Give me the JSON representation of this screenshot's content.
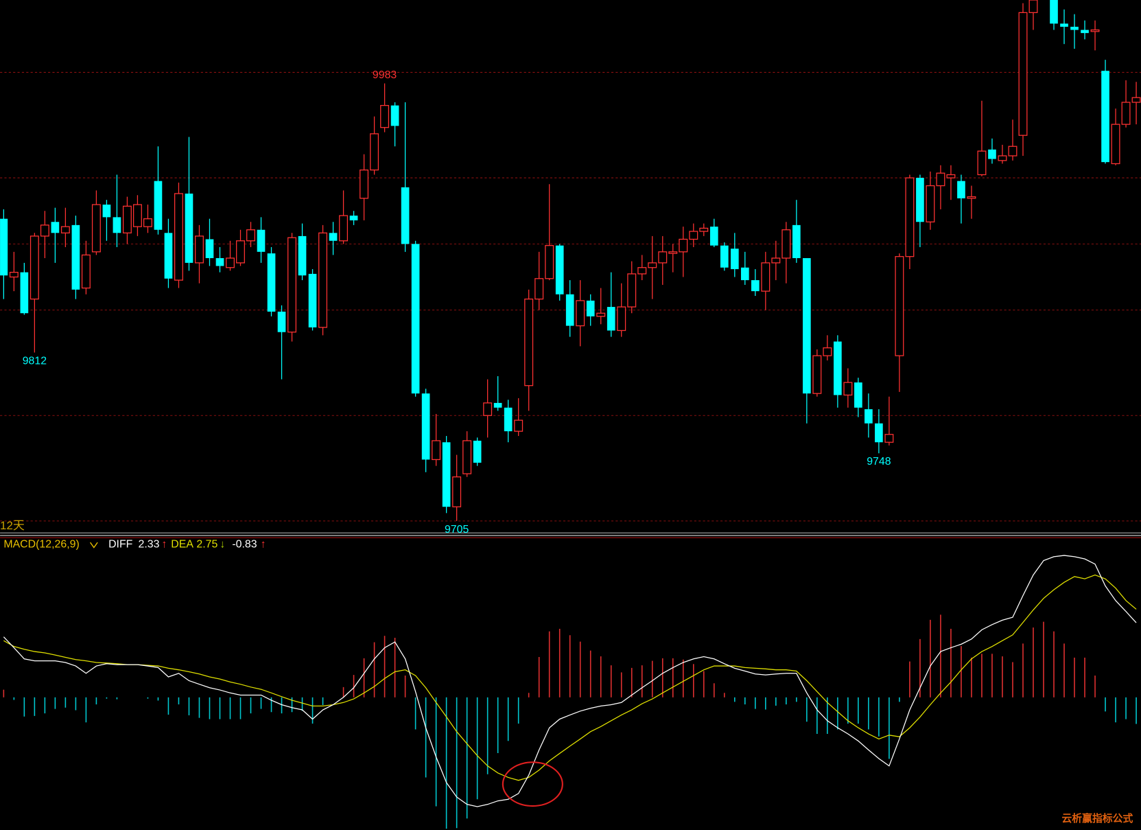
{
  "chart_data": [
    {
      "type": "candlestick",
      "up_color": "#ff3232",
      "down_color": "#00ffff",
      "ylim": [
        9696,
        10036
      ],
      "grid_levels": [
        9990,
        9923,
        9881,
        9839,
        9772,
        9705
      ],
      "grid_color": "#8b1010",
      "period_label": "12天",
      "annotations": [
        9983,
        9812,
        9705,
        9748
      ],
      "open": [
        9897,
        9860,
        9863,
        9846,
        9886,
        9895,
        9888,
        9893,
        9853,
        9876,
        9906,
        9898,
        9888,
        9892,
        9892,
        9921,
        9888,
        9858,
        9913,
        9869,
        9884,
        9872,
        9866,
        9869,
        9883,
        9890,
        9875,
        9838,
        9825,
        9886,
        9862,
        9828,
        9888,
        9883,
        9899,
        9910,
        9928,
        9955,
        9969,
        9917,
        9881,
        9786,
        9744,
        9755,
        9714,
        9735,
        9756,
        9772,
        9780,
        9777,
        9762,
        9791,
        9846,
        9859,
        9880,
        9849,
        9829,
        9845,
        9835,
        9841,
        9826,
        9841,
        9862,
        9866,
        9869,
        9875,
        9876,
        9884,
        9889,
        9892,
        9880,
        9878,
        9866,
        9858,
        9851,
        9869,
        9872,
        9893,
        9872,
        9786,
        9810,
        9819,
        9785,
        9793,
        9776,
        9767,
        9755,
        9810,
        9873,
        9923,
        9895,
        9918,
        9923,
        9921,
        9910,
        9925,
        9941,
        9934,
        9937,
        9950,
        10028,
        10038,
        10045,
        10021,
        10019,
        10017,
        10016,
        9991,
        9932,
        9957,
        9971
      ],
      "high": [
        9903,
        9876,
        9869,
        9888,
        9902,
        9904,
        9904,
        9899,
        9883,
        9915,
        9909,
        9925,
        9911,
        9912,
        9906,
        9943,
        9897,
        9920,
        9949,
        9893,
        9897,
        9879,
        9883,
        9890,
        9895,
        9898,
        9879,
        9842,
        9888,
        9894,
        9865,
        9893,
        9895,
        9915,
        9902,
        9938,
        9962,
        9983,
        9971,
        9971,
        9883,
        9789,
        9773,
        9759,
        9747,
        9762,
        9758,
        9795,
        9797,
        9782,
        9783,
        9852,
        9876,
        9919,
        9881,
        9858,
        9858,
        9849,
        9853,
        9863,
        9856,
        9870,
        9874,
        9886,
        9886,
        9881,
        9892,
        9894,
        9894,
        9897,
        9882,
        9888,
        9876,
        9865,
        9876,
        9883,
        9895,
        9909,
        9872,
        9814,
        9823,
        9823,
        9802,
        9796,
        9786,
        9776,
        9784,
        9875,
        9925,
        9925,
        9927,
        9931,
        9931,
        9925,
        9918,
        9972,
        9948,
        9944,
        9960,
        10034,
        10040,
        10048,
        10050,
        10030,
        10027,
        10023,
        10023,
        9998,
        9967,
        9985,
        9984
      ],
      "low": [
        9846,
        9851,
        9836,
        9812,
        9872,
        9869,
        9879,
        9846,
        9849,
        9874,
        9883,
        9879,
        9881,
        9886,
        9888,
        9887,
        9853,
        9853,
        9864,
        9856,
        9867,
        9863,
        9864,
        9867,
        9879,
        9869,
        9835,
        9795,
        9819,
        9858,
        9826,
        9823,
        9874,
        9881,
        9893,
        9896,
        9925,
        9952,
        9943,
        9876,
        9784,
        9736,
        9740,
        9710,
        9705,
        9733,
        9740,
        9758,
        9775,
        9755,
        9759,
        9775,
        9839,
        9858,
        9845,
        9822,
        9816,
        9829,
        9830,
        9822,
        9822,
        9837,
        9858,
        9846,
        9855,
        9863,
        9860,
        9879,
        9886,
        9879,
        9864,
        9860,
        9855,
        9848,
        9839,
        9858,
        9856,
        9869,
        9767,
        9784,
        9807,
        9777,
        9777,
        9771,
        9758,
        9748,
        9753,
        9787,
        9865,
        9879,
        9890,
        9903,
        9909,
        9894,
        9897,
        9924,
        9932,
        9932,
        9934,
        9937,
        10017,
        10036,
        10017,
        10008,
        10005,
        10011,
        10004,
        9932,
        9931,
        9955,
        9957
      ],
      "close": [
        9861,
        9863,
        9837,
        9886,
        9893,
        9888,
        9892,
        9852,
        9874,
        9906,
        9898,
        9888,
        9905,
        9906,
        9897,
        9890,
        9859,
        9913,
        9869,
        9886,
        9872,
        9867,
        9872,
        9883,
        9890,
        9876,
        9838,
        9825,
        9885,
        9861,
        9828,
        9888,
        9883,
        9899,
        9896,
        9928,
        9951,
        9969,
        9956,
        9881,
        9786,
        9744,
        9756,
        9714,
        9733,
        9756,
        9742,
        9780,
        9777,
        9762,
        9769,
        9846,
        9859,
        9880,
        9849,
        9829,
        9845,
        9835,
        9837,
        9826,
        9841,
        9862,
        9866,
        9869,
        9876,
        9876,
        9884,
        9889,
        9891,
        9880,
        9866,
        9865,
        9858,
        9851,
        9869,
        9872,
        9890,
        9872,
        9786,
        9810,
        9815,
        9785,
        9793,
        9777,
        9767,
        9755,
        9760,
        9873,
        9923,
        9895,
        9918,
        9926,
        9925,
        9910,
        9911,
        9940,
        9935,
        9937,
        9943,
        10028,
        10036,
        10045,
        10021,
        10019,
        10017,
        10015,
        10017,
        9933,
        9957,
        9971,
        9974
      ]
    },
    {
      "type": "macd",
      "title": "MACD(12,26,9)",
      "title_color": "#e8c000",
      "ylim": [
        -4.14,
        4.95
      ],
      "diff": {
        "name": "DIFF",
        "color": "#ffffff",
        "arrow": "↑",
        "values": [
          1.89,
          1.55,
          1.2,
          1.14,
          1.14,
          1.14,
          1.09,
          0.98,
          0.75,
          0.98,
          1.05,
          1.02,
          1.02,
          1.02,
          0.98,
          0.93,
          0.64,
          0.75,
          0.52,
          0.41,
          0.3,
          0.23,
          0.14,
          0.07,
          0.07,
          0.07,
          -0.09,
          -0.23,
          -0.32,
          -0.39,
          -0.68,
          -0.39,
          -0.23,
          0,
          0.3,
          0.75,
          1.2,
          1.55,
          1.73,
          1.2,
          0.18,
          -0.95,
          -1.86,
          -2.66,
          -3.11,
          -3.34,
          -3.41,
          -3.34,
          -3.23,
          -3.18,
          -3.0,
          -2.43,
          -1.64,
          -0.95,
          -0.68,
          -0.55,
          -0.43,
          -0.34,
          -0.27,
          -0.23,
          -0.16,
          0.07,
          0.3,
          0.52,
          0.75,
          0.93,
          1.09,
          1.2,
          1.27,
          1.2,
          1.05,
          0.91,
          0.82,
          0.73,
          0.7,
          0.73,
          0.75,
          0.75,
          0.14,
          -0.39,
          -0.73,
          -0.95,
          -1.14,
          -1.36,
          -1.64,
          -1.91,
          -2.14,
          -1.3,
          -0.39,
          0.3,
          0.98,
          1.43,
          1.55,
          1.66,
          1.82,
          2.11,
          2.27,
          2.41,
          2.5,
          3.18,
          3.82,
          4.27,
          4.39,
          4.43,
          4.39,
          4.32,
          4.16,
          3.48,
          3.02,
          2.68,
          2.33
        ]
      },
      "dea": {
        "name": "DEA",
        "color": "#e0e000",
        "arrow": "↓",
        "values": [
          1.77,
          1.59,
          1.5,
          1.43,
          1.39,
          1.32,
          1.25,
          1.18,
          1.14,
          1.09,
          1.07,
          1.05,
          1.02,
          1.02,
          1.0,
          0.98,
          0.91,
          0.86,
          0.8,
          0.73,
          0.64,
          0.57,
          0.48,
          0.41,
          0.32,
          0.25,
          0.14,
          0.02,
          -0.09,
          -0.18,
          -0.27,
          -0.27,
          -0.23,
          -0.16,
          -0.05,
          0.14,
          0.34,
          0.59,
          0.8,
          0.86,
          0.68,
          0.3,
          -0.16,
          -0.61,
          -1.07,
          -1.45,
          -1.82,
          -2.14,
          -2.36,
          -2.5,
          -2.59,
          -2.5,
          -2.27,
          -1.98,
          -1.75,
          -1.52,
          -1.3,
          -1.07,
          -0.91,
          -0.73,
          -0.55,
          -0.39,
          -0.2,
          -0.05,
          0.14,
          0.32,
          0.5,
          0.68,
          0.86,
          0.98,
          0.98,
          0.98,
          0.93,
          0.91,
          0.89,
          0.86,
          0.86,
          0.82,
          0.52,
          0.18,
          -0.16,
          -0.45,
          -0.73,
          -0.95,
          -1.14,
          -1.3,
          -1.18,
          -1.23,
          -0.95,
          -0.61,
          -0.23,
          0.14,
          0.48,
          0.86,
          1.2,
          1.43,
          1.59,
          1.77,
          1.95,
          2.34,
          2.73,
          3.09,
          3.36,
          3.59,
          3.77,
          3.7,
          3.82,
          3.7,
          3.41,
          3.02,
          2.75
        ]
      },
      "histogram": {
        "up_color": "#e03030",
        "down_color": "#00c8d0",
        "text_color": "#ffffff",
        "arrow": "↑",
        "values": [
          0.24,
          -0.08,
          -0.6,
          -0.58,
          -0.5,
          -0.36,
          -0.32,
          -0.4,
          -0.78,
          -0.22,
          -0.04,
          -0.06,
          0,
          0,
          -0.04,
          -0.1,
          -0.54,
          -0.22,
          -0.56,
          -0.64,
          -0.68,
          -0.68,
          -0.68,
          -0.68,
          -0.5,
          -0.36,
          -0.46,
          -0.5,
          -0.46,
          -0.42,
          -0.82,
          -0.24,
          0,
          0.32,
          0.7,
          1.22,
          1.72,
          1.92,
          1.86,
          0.68,
          -1.0,
          -2.5,
          -3.4,
          -4.1,
          -4.08,
          -3.78,
          -3.18,
          -2.4,
          -1.74,
          -1.36,
          -0.82,
          0.14,
          1.26,
          2.06,
          2.14,
          1.94,
          1.74,
          1.46,
          1.28,
          1.0,
          0.78,
          0.92,
          1.0,
          1.14,
          1.22,
          1.22,
          1.18,
          1.04,
          0.82,
          0.44,
          0.14,
          -0.14,
          -0.22,
          -0.36,
          -0.38,
          -0.26,
          -0.22,
          -0.14,
          -0.76,
          -1.14,
          -1.14,
          -1.0,
          -0.82,
          -0.82,
          -1.0,
          -1.22,
          -1.92,
          -0.14,
          1.12,
          1.82,
          2.42,
          2.58,
          2.14,
          1.6,
          1.24,
          1.36,
          1.36,
          1.28,
          1.1,
          1.68,
          2.18,
          2.36,
          2.06,
          1.68,
          1.24,
          1.24,
          0.68,
          -0.44,
          -0.78,
          -0.68,
          -0.83
        ]
      },
      "watermark": "云析赢指标公式"
    }
  ]
}
